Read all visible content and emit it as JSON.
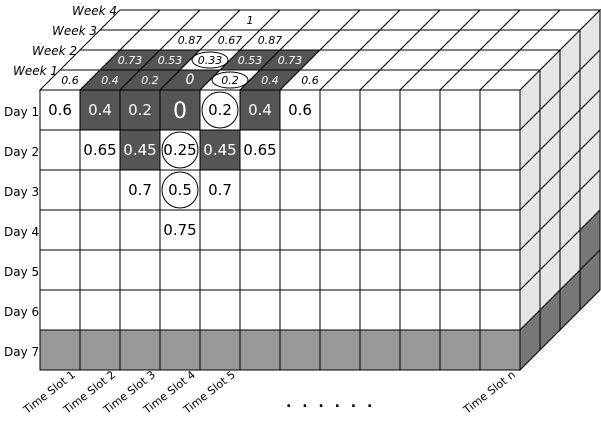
{
  "day_labels": [
    "Day 1",
    "Day 2",
    "Day 3",
    "Day 4",
    "Day 5",
    "Day 6",
    "Day 7"
  ],
  "week_labels": [
    "Week 1",
    "Week 2",
    "Week 3",
    "Week 4"
  ],
  "slot_labels": [
    "Time Slot 1",
    "Time Slot 2",
    "Time Slot 3",
    "Time Slot 4",
    "Time Slot 5"
  ],
  "slot_label_last": "Time Slot n",
  "ellipsis": ". . . . . .",
  "front_cells": [
    {
      "row": 0,
      "col": 0,
      "value": "0.6",
      "style": "plain"
    },
    {
      "row": 0,
      "col": 1,
      "value": "0.4",
      "style": "dark"
    },
    {
      "row": 0,
      "col": 2,
      "value": "0.2",
      "style": "dark"
    },
    {
      "row": 0,
      "col": 3,
      "value": "0",
      "style": "dark-large"
    },
    {
      "row": 0,
      "col": 4,
      "value": "0.2",
      "style": "circle"
    },
    {
      "row": 0,
      "col": 5,
      "value": "0.4",
      "style": "dark"
    },
    {
      "row": 0,
      "col": 6,
      "value": "0.6",
      "style": "plain"
    },
    {
      "row": 1,
      "col": 1,
      "value": "0.65",
      "style": "plain"
    },
    {
      "row": 1,
      "col": 2,
      "value": "0.45",
      "style": "dark"
    },
    {
      "row": 1,
      "col": 3,
      "value": "0.25",
      "style": "circle"
    },
    {
      "row": 1,
      "col": 4,
      "value": "0.45",
      "style": "dark"
    },
    {
      "row": 1,
      "col": 5,
      "value": "0.65",
      "style": "plain"
    },
    {
      "row": 2,
      "col": 2,
      "value": "0.7",
      "style": "plain"
    },
    {
      "row": 2,
      "col": 3,
      "value": "0.5",
      "style": "circle"
    },
    {
      "row": 2,
      "col": 4,
      "value": "0.7",
      "style": "plain"
    },
    {
      "row": 3,
      "col": 3,
      "value": "0.75",
      "style": "plain"
    }
  ],
  "top_cells": [
    {
      "week": 0,
      "col": 0,
      "value": "0.6",
      "style": "plain"
    },
    {
      "week": 0,
      "col": 1,
      "value": "0.4",
      "style": "dark"
    },
    {
      "week": 0,
      "col": 2,
      "value": "0.2",
      "style": "dark"
    },
    {
      "week": 0,
      "col": 3,
      "value": "0",
      "style": "dark-large"
    },
    {
      "week": 0,
      "col": 4,
      "value": "0.2",
      "style": "circle"
    },
    {
      "week": 0,
      "col": 5,
      "value": "0.4",
      "style": "dark"
    },
    {
      "week": 0,
      "col": 6,
      "value": "0.6",
      "style": "plain"
    },
    {
      "week": 1,
      "col": 1,
      "value": "0.73",
      "style": "dark"
    },
    {
      "week": 1,
      "col": 2,
      "value": "0.53",
      "style": "dark"
    },
    {
      "week": 1,
      "col": 3,
      "value": "0.33",
      "style": "circle"
    },
    {
      "week": 1,
      "col": 4,
      "value": "0.53",
      "style": "dark"
    },
    {
      "week": 1,
      "col": 5,
      "value": "0.73",
      "style": "dark"
    },
    {
      "week": 2,
      "col": 2,
      "value": "0.87",
      "style": "plain"
    },
    {
      "week": 2,
      "col": 3,
      "value": "0.67",
      "style": "plain"
    },
    {
      "week": 2,
      "col": 4,
      "value": "0.87",
      "style": "plain"
    },
    {
      "week": 3,
      "col": 3,
      "value": "1",
      "style": "plain"
    }
  ],
  "colors": {
    "dark_cell": "#555555",
    "day7_row": "#999999",
    "side_face": "#e6e6e6",
    "side_face_dark": "#777777",
    "grid_line": "#000000"
  }
}
